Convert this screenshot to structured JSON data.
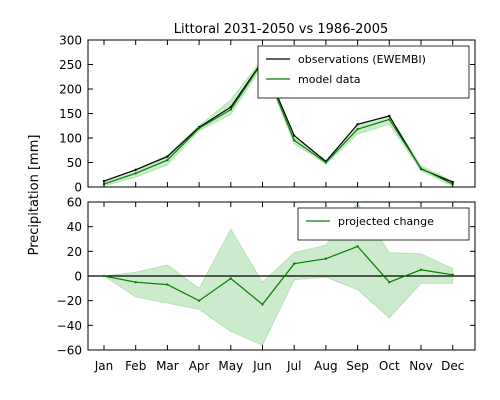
{
  "chart_data": [
    {
      "type": "line",
      "title": "Littoral 2031-2050 vs 1986-2005",
      "ylabel": "Precipitation [mm]",
      "categories": [
        "Jan",
        "Feb",
        "Mar",
        "Apr",
        "May",
        "Jun",
        "Jul",
        "Aug",
        "Sep",
        "Oct",
        "Nov",
        "Dec"
      ],
      "ylim": [
        0,
        300
      ],
      "yticks": [
        0,
        50,
        100,
        150,
        200,
        250,
        300
      ],
      "grid": false,
      "legend_position": "top-right",
      "series": [
        {
          "name": "observations (EWEMBI)",
          "color": "#000000",
          "values": [
            12,
            35,
            62,
            122,
            163,
            257,
            105,
            52,
            128,
            145,
            37,
            10
          ]
        },
        {
          "name": "model data",
          "color": "#008000",
          "band_color": "#8fd18f",
          "values": [
            6,
            28,
            55,
            120,
            158,
            255,
            95,
            50,
            118,
            138,
            38,
            6
          ],
          "lower": [
            2,
            20,
            45,
            115,
            148,
            248,
            88,
            47,
            108,
            128,
            33,
            2
          ],
          "upper": [
            10,
            35,
            65,
            125,
            178,
            262,
            100,
            54,
            127,
            146,
            43,
            12
          ]
        }
      ]
    },
    {
      "type": "line",
      "categories": [
        "Jan",
        "Feb",
        "Mar",
        "Apr",
        "May",
        "Jun",
        "Jul",
        "Aug",
        "Sep",
        "Oct",
        "Nov",
        "Dec"
      ],
      "ylim": [
        -60,
        60
      ],
      "yticks": [
        -60,
        -40,
        -20,
        0,
        20,
        40,
        60
      ],
      "hline": 0,
      "grid": false,
      "legend_position": "top-right",
      "series": [
        {
          "name": "projected change",
          "color": "#008000",
          "band_color": "#8fd18f",
          "values": [
            0,
            -5,
            -7,
            -20,
            -2,
            -23,
            10,
            14,
            24,
            -5,
            5,
            1
          ],
          "lower": [
            0,
            -17,
            -22,
            -27,
            -45,
            -56,
            -3,
            -1,
            -11,
            -34,
            -6,
            -6
          ],
          "upper": [
            0,
            3,
            9,
            -10,
            38,
            -5,
            19,
            25,
            59,
            19,
            18,
            6
          ]
        }
      ]
    }
  ]
}
